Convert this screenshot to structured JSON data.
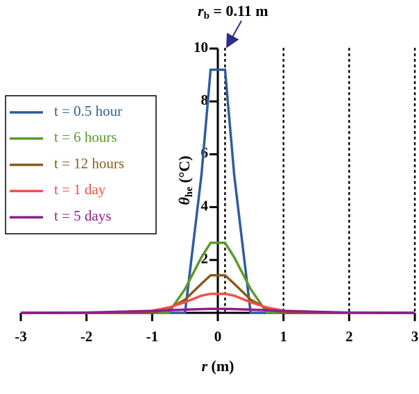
{
  "chart_data": {
    "type": "line",
    "x": [
      -3,
      -2,
      -1,
      -0.75,
      -0.5,
      -0.25,
      -0.11,
      0,
      0.11,
      0.25,
      0.5,
      0.75,
      1,
      2,
      3
    ],
    "series": [
      {
        "name": "t = 0.5 hour",
        "color": "#2e5c9e",
        "values": [
          0,
          0,
          0,
          0,
          0,
          5.2,
          9.2,
          9.2,
          9.2,
          5.2,
          0,
          0,
          0,
          0,
          0
        ]
      },
      {
        "name": "t = 6 hours",
        "color": "#5a9a2a",
        "values": [
          0,
          0,
          0,
          0,
          0.9,
          2.1,
          2.65,
          2.65,
          2.65,
          2.1,
          0.9,
          0,
          0,
          0,
          0
        ]
      },
      {
        "name": "t = 12 hours",
        "color": "#8b5a1a",
        "values": [
          0,
          0,
          0,
          0.15,
          0.5,
          1.1,
          1.42,
          1.42,
          1.42,
          1.1,
          0.5,
          0.15,
          0,
          0,
          0
        ]
      },
      {
        "name": "t = 1 day",
        "color": "#f0504a",
        "values": [
          0,
          0,
          0.08,
          0.2,
          0.4,
          0.65,
          0.72,
          0.72,
          0.72,
          0.65,
          0.4,
          0.2,
          0.08,
          0,
          0
        ]
      },
      {
        "name": "t = 5 days",
        "color": "#8e1e8e",
        "values": [
          0,
          0.01,
          0.07,
          0.1,
          0.12,
          0.14,
          0.15,
          0.15,
          0.15,
          0.14,
          0.12,
          0.1,
          0.07,
          0.01,
          0
        ]
      }
    ],
    "xlim": [
      -3,
      3
    ],
    "xticks": [
      -3,
      -2,
      -1,
      0,
      1,
      2,
      3
    ],
    "ylim": [
      0,
      10
    ],
    "yticks": [
      2,
      4,
      6,
      8,
      10
    ],
    "x_label": {
      "symbol": "r",
      "unit": " (m)"
    },
    "y_label": {
      "symbol": "θ",
      "sub": "he",
      "unit": " (°C)"
    },
    "dotted_lines": [
      0.11,
      1,
      2,
      3
    ],
    "annotation": {
      "symbol": "r",
      "sub": "b",
      "rest": " = 0.11 m"
    }
  }
}
